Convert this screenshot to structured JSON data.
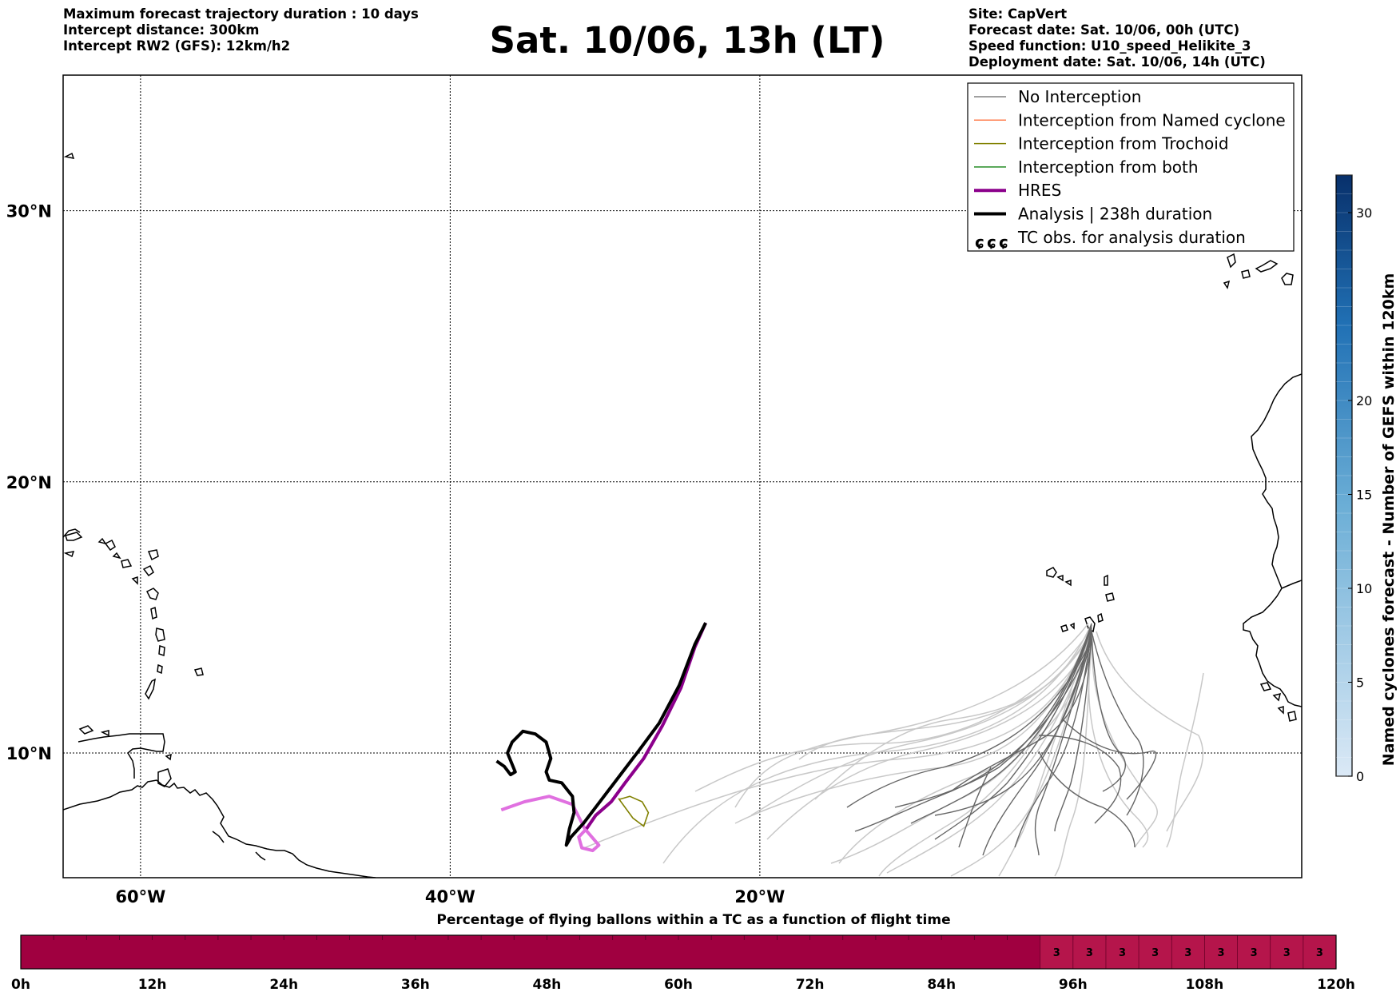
{
  "header": {
    "left": [
      "Maximum forecast trajectory duration : 10 days",
      "Intercept distance: 300km",
      "Intercept RW2 (GFS):  12km/h2"
    ],
    "title": "Sat. 10/06, 13h (LT)",
    "right": [
      "Site: CapVert",
      "Forecast date: Sat. 10/06, 00h (UTC)",
      "Speed function: U10_speed_Helikite_3",
      "Deployment date: Sat. 10/06, 14h (UTC)"
    ]
  },
  "map": {
    "lon_range": [
      -65,
      15
    ],
    "lat_range": [
      5.4,
      35
    ],
    "lon_ticks": [
      {
        "value": -60,
        "label": "60°W"
      },
      {
        "value": -40,
        "label": "40°W"
      },
      {
        "value": -20,
        "label": "20°W"
      }
    ],
    "lat_ticks": [
      {
        "value": 10,
        "label": "10°N"
      },
      {
        "value": 20,
        "label": "20°N"
      },
      {
        "value": 30,
        "label": "30°N"
      }
    ],
    "grid": true,
    "site": {
      "name": "CapVert",
      "lon": -23.5,
      "lat": 14.8
    },
    "colors": {
      "no_interception": "#808080",
      "no_interception_light": "#c8c8c8",
      "named_cyclone": "#ff7f50",
      "trochoid": "#808000",
      "both": "#228b22",
      "hres": "#8b008b",
      "analysis": "#000000"
    }
  },
  "legend": {
    "items": [
      {
        "label": "No Interception",
        "color": "#808080",
        "style": "thin"
      },
      {
        "label": "Interception from Named cyclone",
        "color": "#ff7f50",
        "style": "thin"
      },
      {
        "label": "Interception from Trochoid",
        "color": "#808000",
        "style": "thin"
      },
      {
        "label": "Interception from both",
        "color": "#228b22",
        "style": "thin"
      },
      {
        "label": "HRES",
        "color": "#8b008b",
        "style": "thick"
      },
      {
        "label": "Analysis | 238h duration",
        "color": "#000000",
        "style": "thick"
      },
      {
        "label": "TC obs. for analysis duration",
        "color": "#000000",
        "style": "tc-symbol"
      }
    ]
  },
  "colorbar": {
    "label": "Named cyclones forecast - Number of GEFS within 120km",
    "min": 0,
    "max": 32,
    "ticks": [
      0,
      5,
      10,
      15,
      20,
      30
    ],
    "colors": [
      "#dbe9f6",
      "#08306b"
    ]
  },
  "progress_bar": {
    "title": "Percentage of flying ballons within a TC as a function of flight time",
    "tick_labels": [
      "0h",
      "12h",
      "24h",
      "36h",
      "48h",
      "60h",
      "72h",
      "84h",
      "96h",
      "108h",
      "120h"
    ],
    "max_hours": 120,
    "cell_hours": 3,
    "base_color": "#a00040",
    "highlight_color": "#b5154b",
    "highlight_from_hour": 93,
    "cell_values": [
      {
        "hour": 93,
        "value": "3"
      },
      {
        "hour": 96,
        "value": "3"
      },
      {
        "hour": 99,
        "value": "3"
      },
      {
        "hour": 102,
        "value": "3"
      },
      {
        "hour": 105,
        "value": "3"
      },
      {
        "hour": 108,
        "value": "3"
      },
      {
        "hour": 111,
        "value": "3"
      },
      {
        "hour": 114,
        "value": "3"
      },
      {
        "hour": 117,
        "value": "3"
      }
    ]
  },
  "chart_data": {
    "type": "map-trajectories",
    "site": {
      "lon": -23.5,
      "lat": 14.8
    },
    "analysis": {
      "label": "Analysis | 238h duration",
      "lon": [
        -23.5,
        -24.2,
        -25.2,
        -26.5,
        -27.8,
        -29.0,
        -30.2,
        -31.4,
        -32.2,
        -32.5,
        -32.3,
        -32.0,
        -32.1,
        -32.8,
        -33.6,
        -33.8,
        -33.5,
        -33.8,
        -34.5,
        -35.3,
        -36.0,
        -36.3,
        -35.8,
        -36.1,
        -36.5,
        -37.0
      ],
      "lat": [
        14.8,
        14.0,
        12.5,
        11.1,
        10.1,
        9.2,
        8.3,
        7.4,
        6.9,
        6.6,
        7.2,
        7.8,
        8.4,
        8.9,
        9.0,
        9.3,
        9.8,
        10.4,
        10.7,
        10.8,
        10.4,
        10.0,
        9.3,
        9.2,
        9.5,
        9.7
      ]
    },
    "hres": {
      "label": "HRES",
      "lon": [
        -23.5,
        -24.2,
        -25.1,
        -26.3,
        -27.5,
        -28.7,
        -29.6,
        -30.6,
        -31.2,
        -31.7,
        -31.5,
        -30.8,
        -30.4,
        -31.3,
        -32.1,
        -33.6,
        -35.2,
        -36.7
      ],
      "lat": [
        14.8,
        13.9,
        12.4,
        11.0,
        9.8,
        8.9,
        8.2,
        7.7,
        7.2,
        6.9,
        6.5,
        6.4,
        6.6,
        7.2,
        8.1,
        8.4,
        8.2,
        7.9
      ]
    },
    "trochoid": {
      "label": "Interception from Trochoid",
      "lon": [
        -29.1,
        -28.2,
        -27.5,
        -27.2,
        -27.6,
        -28.4,
        -29.0
      ],
      "lat": [
        8.3,
        7.6,
        7.3,
        7.8,
        8.2,
        8.4,
        8.3
      ]
    }
  }
}
